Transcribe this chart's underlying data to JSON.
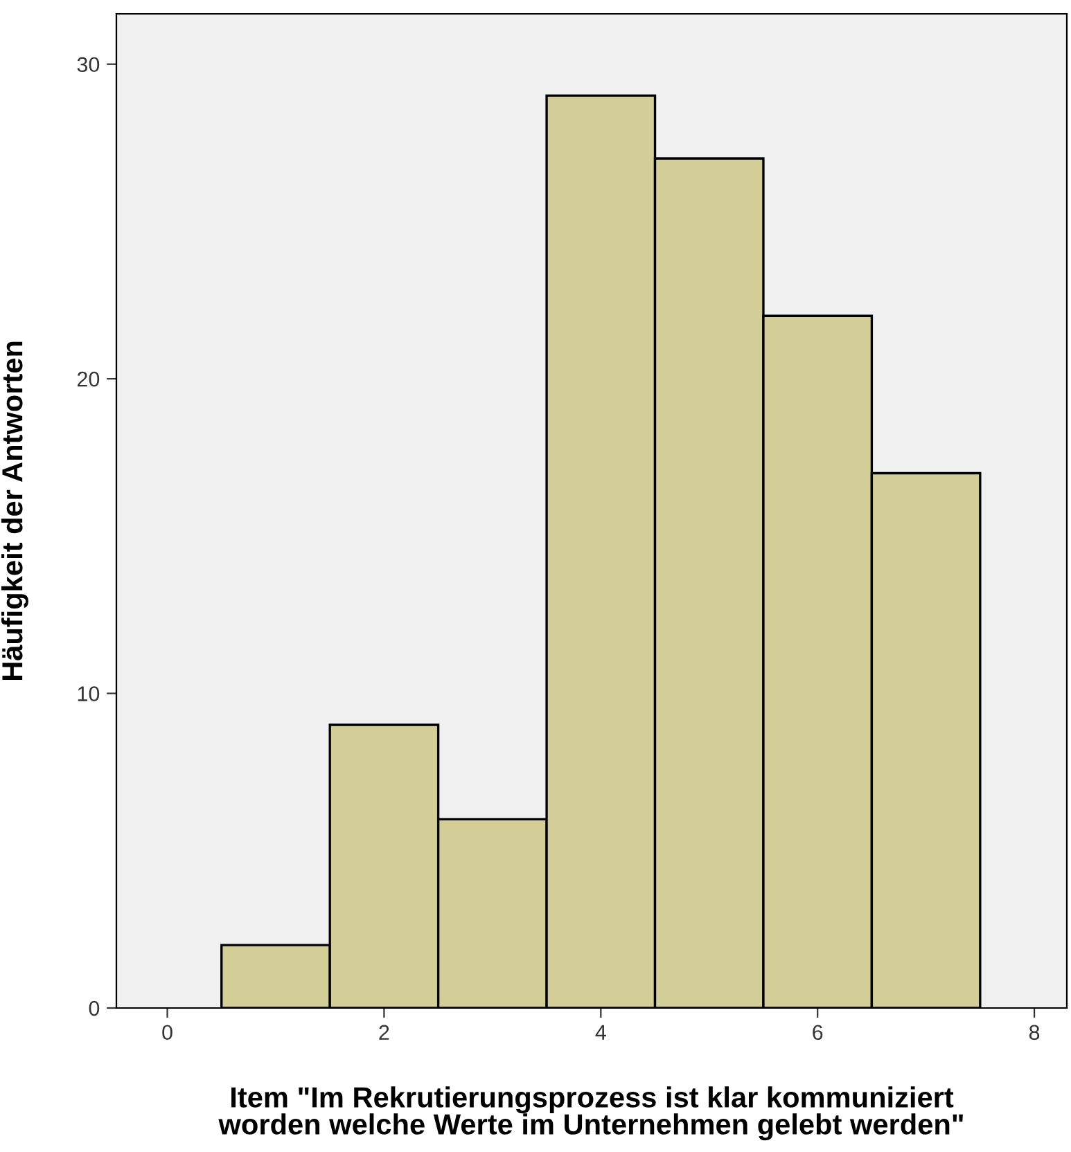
{
  "chart_data": {
    "type": "histogram",
    "xlabel": "Item \"Im Rekrutierungsprozess ist klar kommuniziert\nworden welche Werte im Unternehmen gelebt werden\"",
    "ylabel": "Häufigkeit der Antworten",
    "bins": [
      0.5,
      1.5,
      2.5,
      3.5,
      4.5,
      5.5,
      6.5,
      7.5
    ],
    "values": [
      2,
      9,
      6,
      29,
      27,
      22,
      17
    ],
    "color": "#d3ce97",
    "xlim": [
      -0.47,
      8.3
    ],
    "ylim": [
      0,
      31.6
    ],
    "xticks": [
      0,
      2,
      4,
      6,
      8
    ],
    "yticks": [
      0,
      10,
      20,
      30
    ],
    "grid": false,
    "legend": false
  }
}
